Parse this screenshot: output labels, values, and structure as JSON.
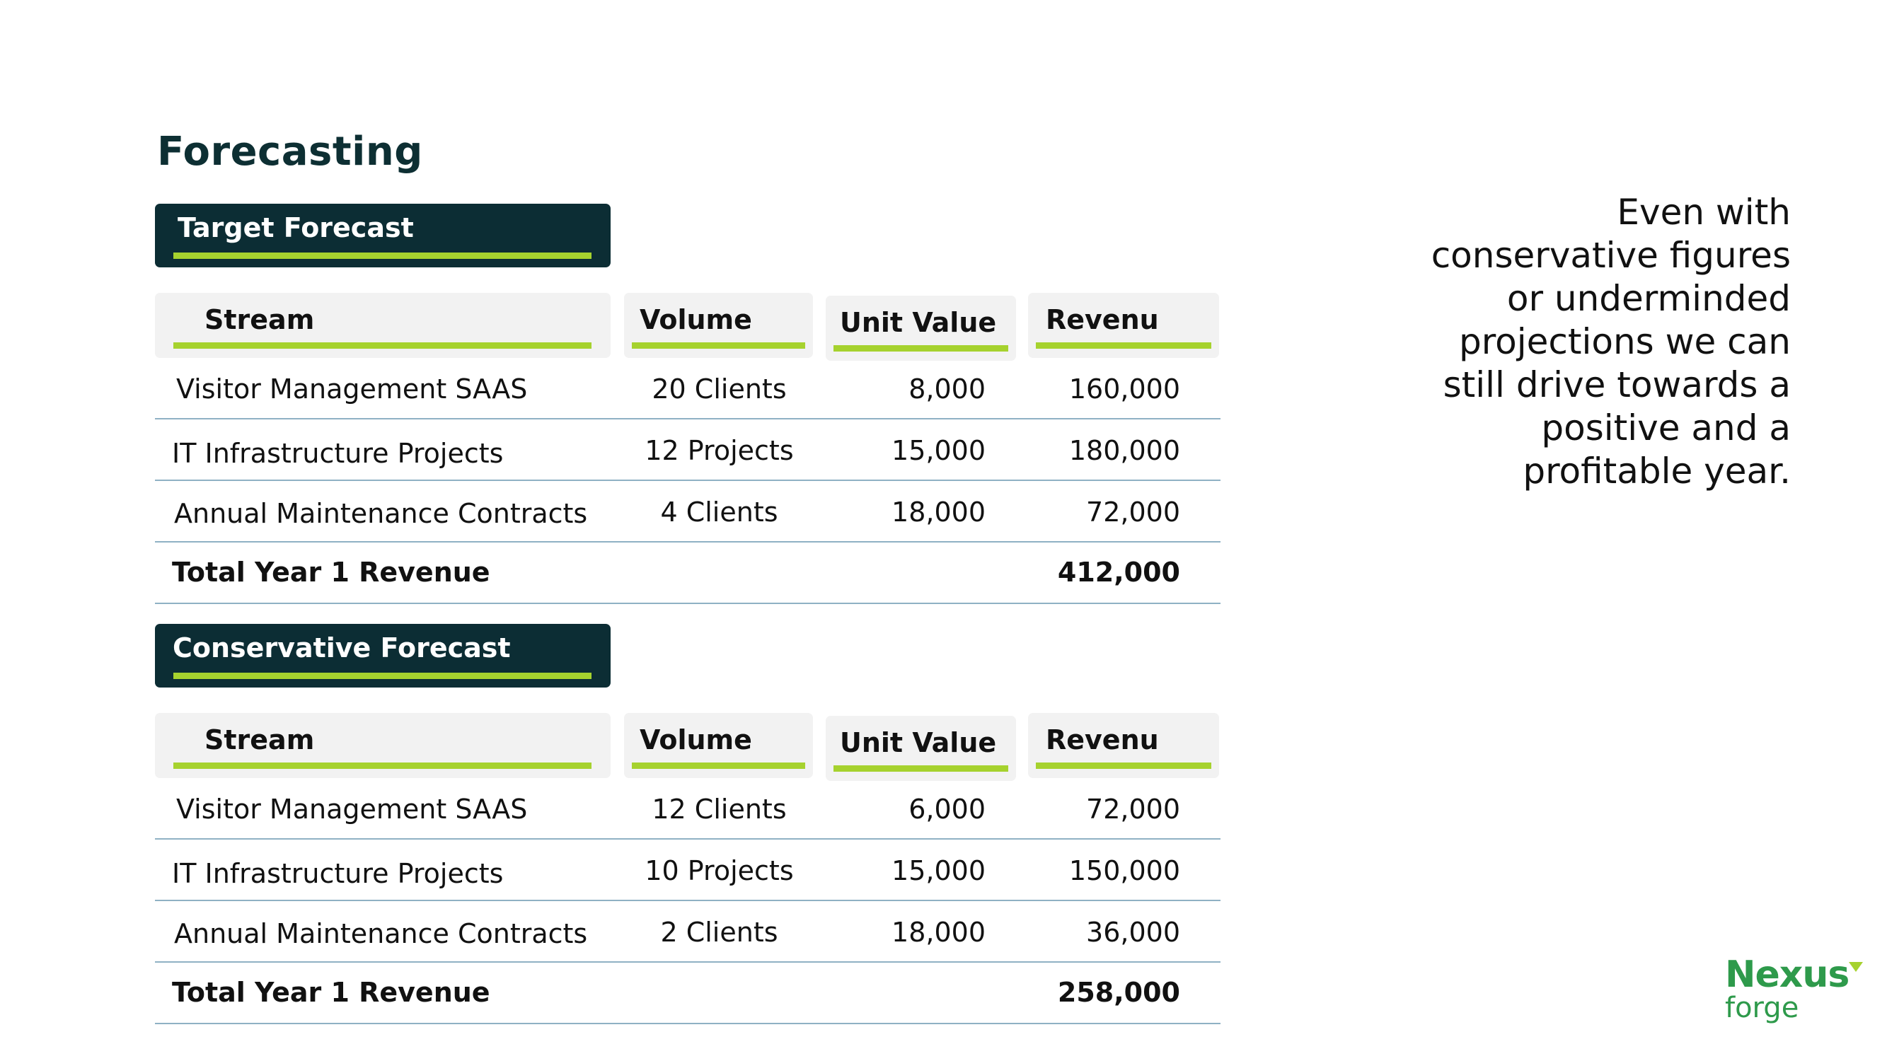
{
  "page": {
    "title": "Forecasting",
    "tagline": "Even with conservative figures or underminded projections we can still drive towards a positive and a profitable year."
  },
  "forecasts": [
    {
      "banner": "Target Forecast",
      "headers": {
        "stream": "Stream",
        "volume": "Volume",
        "unit_value": "Unit Value",
        "revenue": "Revenu"
      },
      "rows": [
        {
          "stream": "Visitor Management SAAS",
          "volume": "20 Clients",
          "unit_value": "8,000",
          "revenue": "160,000"
        },
        {
          "stream": "IT Infrastructure Projects",
          "volume": "12 Projects",
          "unit_value": "15,000",
          "revenue": "180,000"
        },
        {
          "stream": "Annual Maintenance Contracts",
          "volume": "4 Clients",
          "unit_value": "18,000",
          "revenue": "72,000"
        }
      ],
      "total": {
        "label": "Total Year 1 Revenue",
        "value": "412,000"
      }
    },
    {
      "banner": "Conservative Forecast",
      "headers": {
        "stream": "Stream",
        "volume": "Volume",
        "unit_value": "Unit Value",
        "revenue": "Revenu"
      },
      "rows": [
        {
          "stream": "Visitor Management SAAS",
          "volume": "12 Clients",
          "unit_value": "6,000",
          "revenue": "72,000"
        },
        {
          "stream": "IT Infrastructure Projects",
          "volume": "10 Projects",
          "unit_value": "15,000",
          "revenue": "150,000"
        },
        {
          "stream": "Annual Maintenance Contracts",
          "volume": "2 Clients",
          "unit_value": "18,000",
          "revenue": "36,000"
        }
      ],
      "total": {
        "label": "Total Year 1 Revenue",
        "value": "258,000"
      }
    }
  ],
  "logo": {
    "word1": "Nexus",
    "word2": "forge",
    "icon": "green-triangle-icon",
    "color": "#2e9a4b"
  },
  "colors": {
    "accent": "#a6d22e",
    "banner": "#0c2d34",
    "title": "#0d2f33",
    "row_divider": "#8fb1c4"
  }
}
